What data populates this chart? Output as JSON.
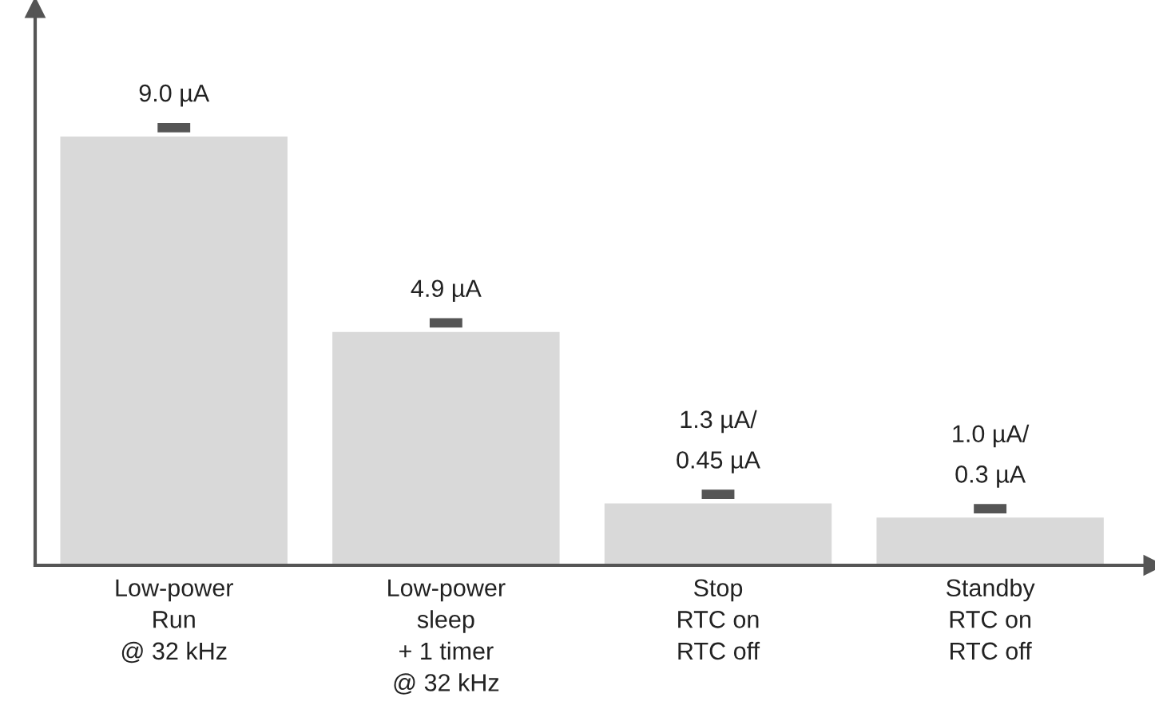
{
  "chart_data": {
    "type": "bar",
    "categories": [
      "Low-power\nRun\n@ 32 kHz",
      "Low-power\nsleep\n+ 1 timer\n@ 32 kHz",
      "Stop\nRTC on\nRTC off",
      "Standby\nRTC on\nRTC off"
    ],
    "values": [
      9.0,
      4.9,
      1.3,
      1.0
    ],
    "value_labels": [
      "9.0 µA",
      "4.9 µA",
      "1.3 µA/\n0.45 µA",
      "1.0 µA/\n0.3 µA"
    ],
    "color": "#d9d9d9",
    "legend": false
  }
}
